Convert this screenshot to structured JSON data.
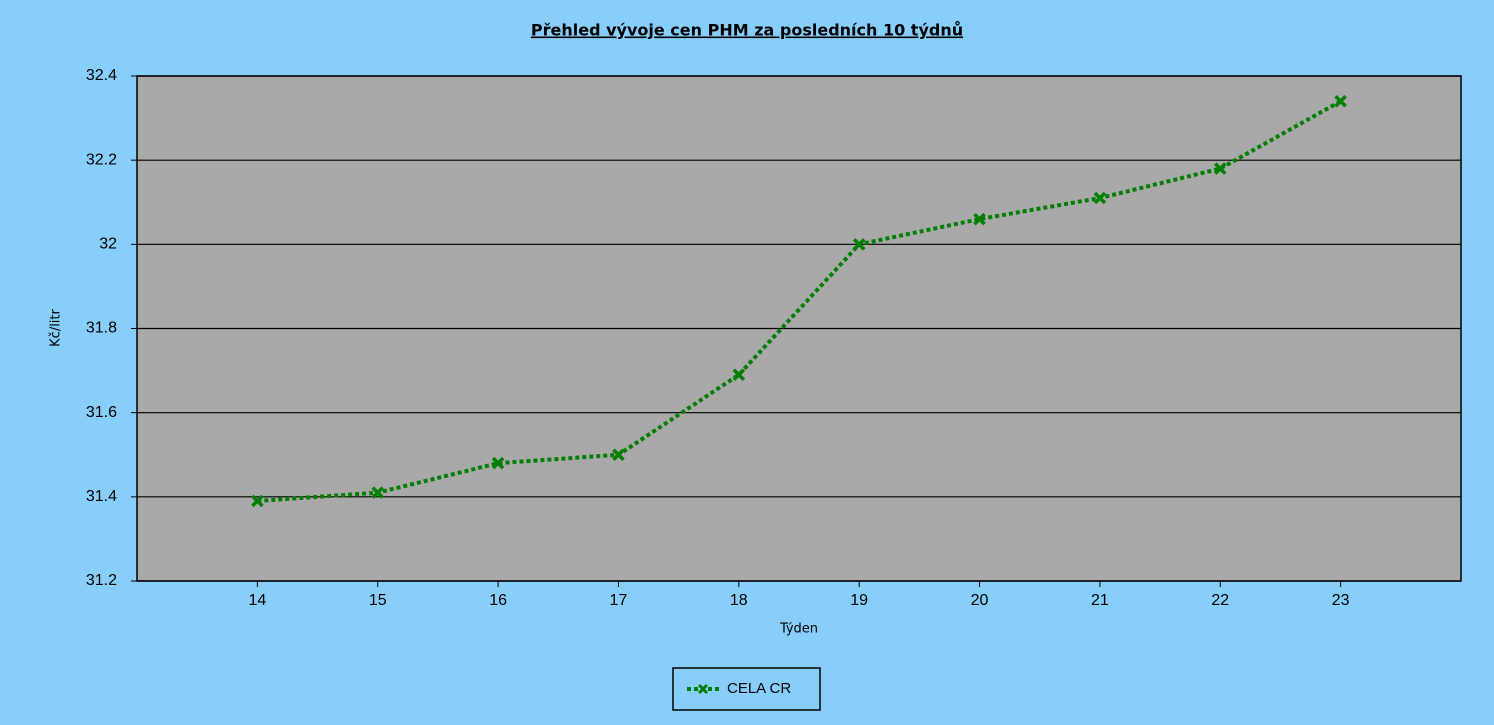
{
  "chart_data": {
    "type": "line",
    "title": "Přehled vývoje cen PHM za posledních 10 týdnů",
    "x_label": "Týden",
    "y_label": "Kč/litr",
    "x": [
      14,
      15,
      16,
      17,
      18,
      19,
      20,
      21,
      22,
      23
    ],
    "series": [
      {
        "name": "CELA CR",
        "color": "#008000",
        "values": [
          31.39,
          31.41,
          31.48,
          31.5,
          31.69,
          32.0,
          32.06,
          32.11,
          32.18,
          32.34
        ]
      }
    ],
    "xlim": [
      13,
      24
    ],
    "xticks": [
      14,
      15,
      16,
      17,
      18,
      19,
      20,
      21,
      22,
      23
    ],
    "ylim": [
      31.2,
      32.4
    ],
    "yticks": [
      31.2,
      31.4,
      31.6,
      31.8,
      32,
      32.2,
      32.4
    ],
    "grid": true,
    "legend": "bottom"
  }
}
